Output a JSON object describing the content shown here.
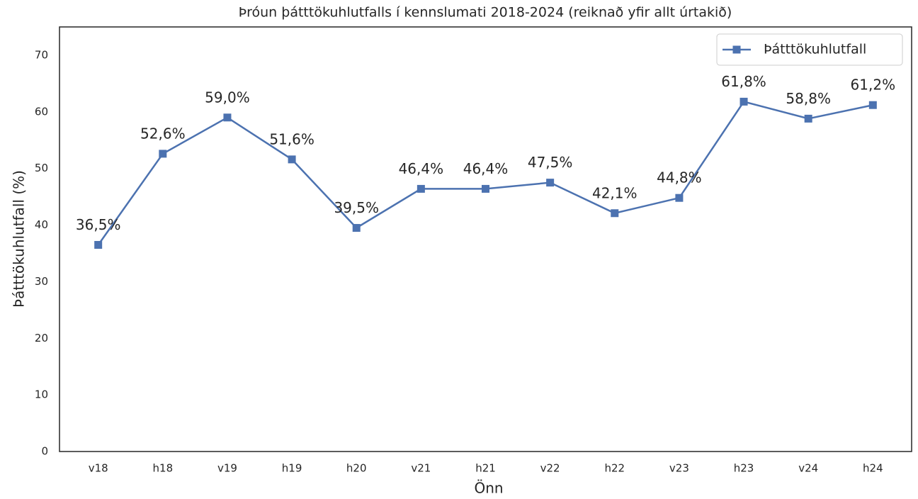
{
  "chart_data": {
    "type": "line",
    "title": "Þróun þátttökuhlutfalls í kennslumati 2018-2024 (reiknað yfir allt úrtakið)",
    "xlabel": "Önn",
    "ylabel": "Þátttökuhlutfall (%)",
    "categories": [
      "v18",
      "h18",
      "v19",
      "h19",
      "h20",
      "v21",
      "h21",
      "v22",
      "h22",
      "v23",
      "h23",
      "v24",
      "h24"
    ],
    "series": [
      {
        "name": "Þátttökuhlutfall",
        "color": "#4c72b0",
        "values": [
          36.5,
          52.6,
          59.0,
          51.6,
          39.5,
          46.4,
          46.4,
          47.5,
          42.1,
          44.8,
          61.8,
          58.8,
          61.2
        ],
        "value_labels": [
          "36,5%",
          "52,6%",
          "59,0%",
          "51,6%",
          "39,5%",
          "46,4%",
          "46,4%",
          "47,5%",
          "42,1%",
          "44,8%",
          "61,8%",
          "58,8%",
          "61,2%"
        ]
      }
    ],
    "ylim": [
      0,
      75
    ],
    "yticks": [
      0,
      10,
      20,
      30,
      40,
      50,
      60,
      70
    ],
    "grid": false,
    "legend": "upper right"
  }
}
